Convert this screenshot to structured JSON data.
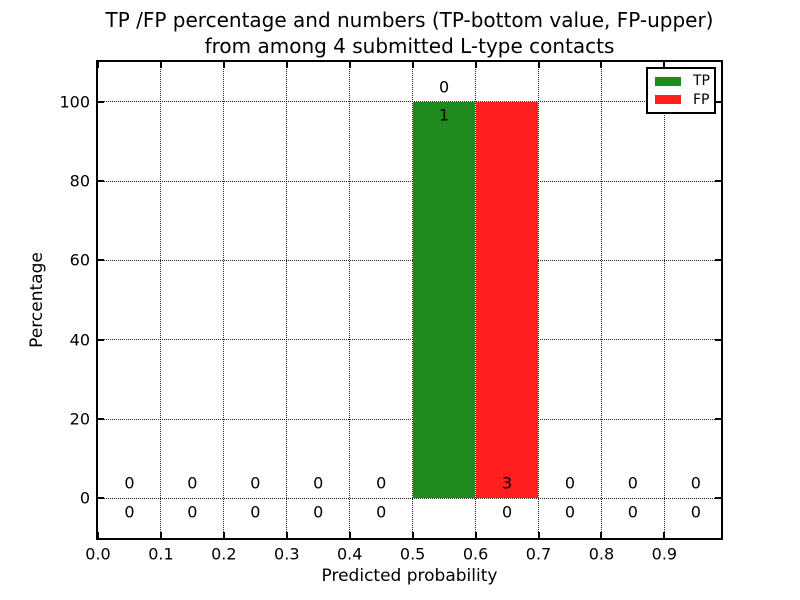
{
  "chart_data": {
    "type": "bar",
    "title_line1": "TP /FP percentage and numbers (TP-bottom value, FP-upper)",
    "title_line2": "from among 4 submitted L-type contacts",
    "xlabel": "Predicted probability",
    "ylabel": "Percentage",
    "xlim": [
      0.0,
      0.99
    ],
    "ylim": [
      -10,
      110
    ],
    "xtick_values": [
      0.0,
      0.1,
      0.2,
      0.3,
      0.4,
      0.5,
      0.6,
      0.7,
      0.8,
      0.9
    ],
    "xtick_labels": [
      "0.0",
      "0.1",
      "0.2",
      "0.3",
      "0.4",
      "0.5",
      "0.6",
      "0.7",
      "0.8",
      "0.9"
    ],
    "ytick_values": [
      0,
      20,
      40,
      60,
      80,
      100
    ],
    "ytick_labels": [
      "0",
      "20",
      "40",
      "60",
      "80",
      "100"
    ],
    "grid": true,
    "grid_style": "dotted",
    "legend_position": "upper right",
    "bin_centers": [
      0.05,
      0.15,
      0.25,
      0.35,
      0.45,
      0.55,
      0.65,
      0.75,
      0.85,
      0.95
    ],
    "bin_width": 0.1,
    "series": [
      {
        "name": "TP",
        "color": "#1f8b1f",
        "percent": [
          0,
          0,
          0,
          0,
          0,
          100,
          0,
          0,
          0,
          0
        ],
        "counts": [
          0,
          0,
          0,
          0,
          0,
          1,
          0,
          0,
          0,
          0
        ],
        "count_label_row": "bottom"
      },
      {
        "name": "FP",
        "color": "#ff1f1f",
        "percent": [
          0,
          0,
          0,
          0,
          0,
          0,
          100,
          0,
          0,
          0
        ],
        "counts": [
          0,
          0,
          0,
          0,
          0,
          0,
          3,
          0,
          0,
          0
        ],
        "count_label_row": "upper"
      }
    ],
    "total_submitted_contacts": 4
  },
  "colors": {
    "background": "#ffffff",
    "text": "#000000",
    "grid": "#000000",
    "frame": "#000000"
  }
}
